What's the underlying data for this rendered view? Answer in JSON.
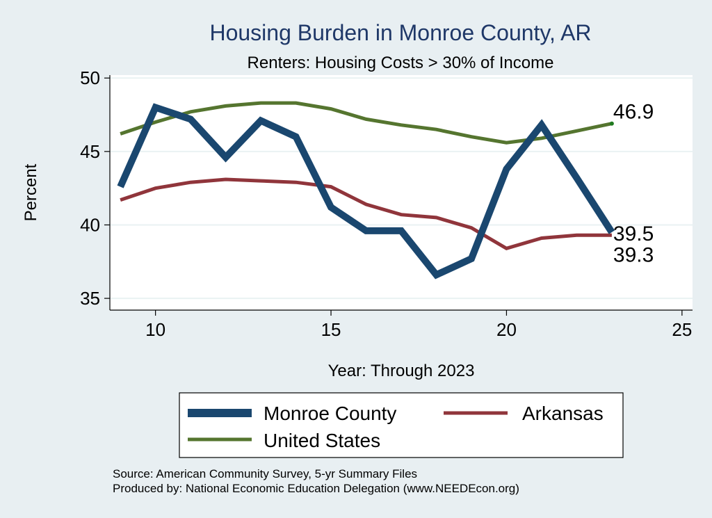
{
  "chart_data": {
    "type": "line",
    "title": "Housing Burden in Monroe County, AR",
    "subtitle": "Renters: Housing Costs > 30% of Income",
    "xlabel": "Year: Through 2023",
    "ylabel": "Percent",
    "xlim": [
      8.7,
      25.3
    ],
    "ylim": [
      34.2,
      50.2
    ],
    "xticks": [
      10,
      15,
      20,
      25
    ],
    "yticks": [
      35,
      40,
      45,
      50
    ],
    "grid": true,
    "legend_position": "bottom",
    "x": [
      9,
      10,
      11,
      12,
      13,
      14,
      15,
      16,
      17,
      18,
      19,
      20,
      21,
      22,
      23
    ],
    "series": [
      {
        "name": "Monroe County",
        "color": "#1a476f",
        "values": [
          42.6,
          48.0,
          47.2,
          44.6,
          47.1,
          46.0,
          41.2,
          39.6,
          39.6,
          36.6,
          37.7,
          43.8,
          46.8,
          43.2,
          39.5
        ]
      },
      {
        "name": "Arkansas",
        "color": "#90353b",
        "values": [
          41.7,
          42.5,
          42.9,
          43.1,
          43.0,
          42.9,
          42.6,
          41.4,
          40.7,
          40.5,
          39.8,
          38.4,
          39.1,
          39.3,
          39.3
        ]
      },
      {
        "name": "United States",
        "color": "#55752f",
        "values": [
          46.2,
          47.0,
          47.7,
          48.1,
          48.3,
          48.3,
          47.9,
          47.2,
          46.8,
          46.5,
          46.0,
          45.6,
          45.9,
          46.4,
          46.9
        ]
      }
    ],
    "end_labels": [
      {
        "series": "United States",
        "text": "46.9"
      },
      {
        "series": "Monroe County",
        "text": "39.5"
      },
      {
        "series": "Arkansas",
        "text": "39.3"
      }
    ]
  },
  "source_lines": [
    "Source: American Community Survey, 5-yr Summary Files",
    "Produced by: National Economic Education Delegation (www.NEEDEcon.org)"
  ],
  "colors": {
    "background": "#e8eff2",
    "plot_background": "#ffffff",
    "grid": "#eaf2f3",
    "title": "#1f3868",
    "marker": "#1f7a1f"
  }
}
